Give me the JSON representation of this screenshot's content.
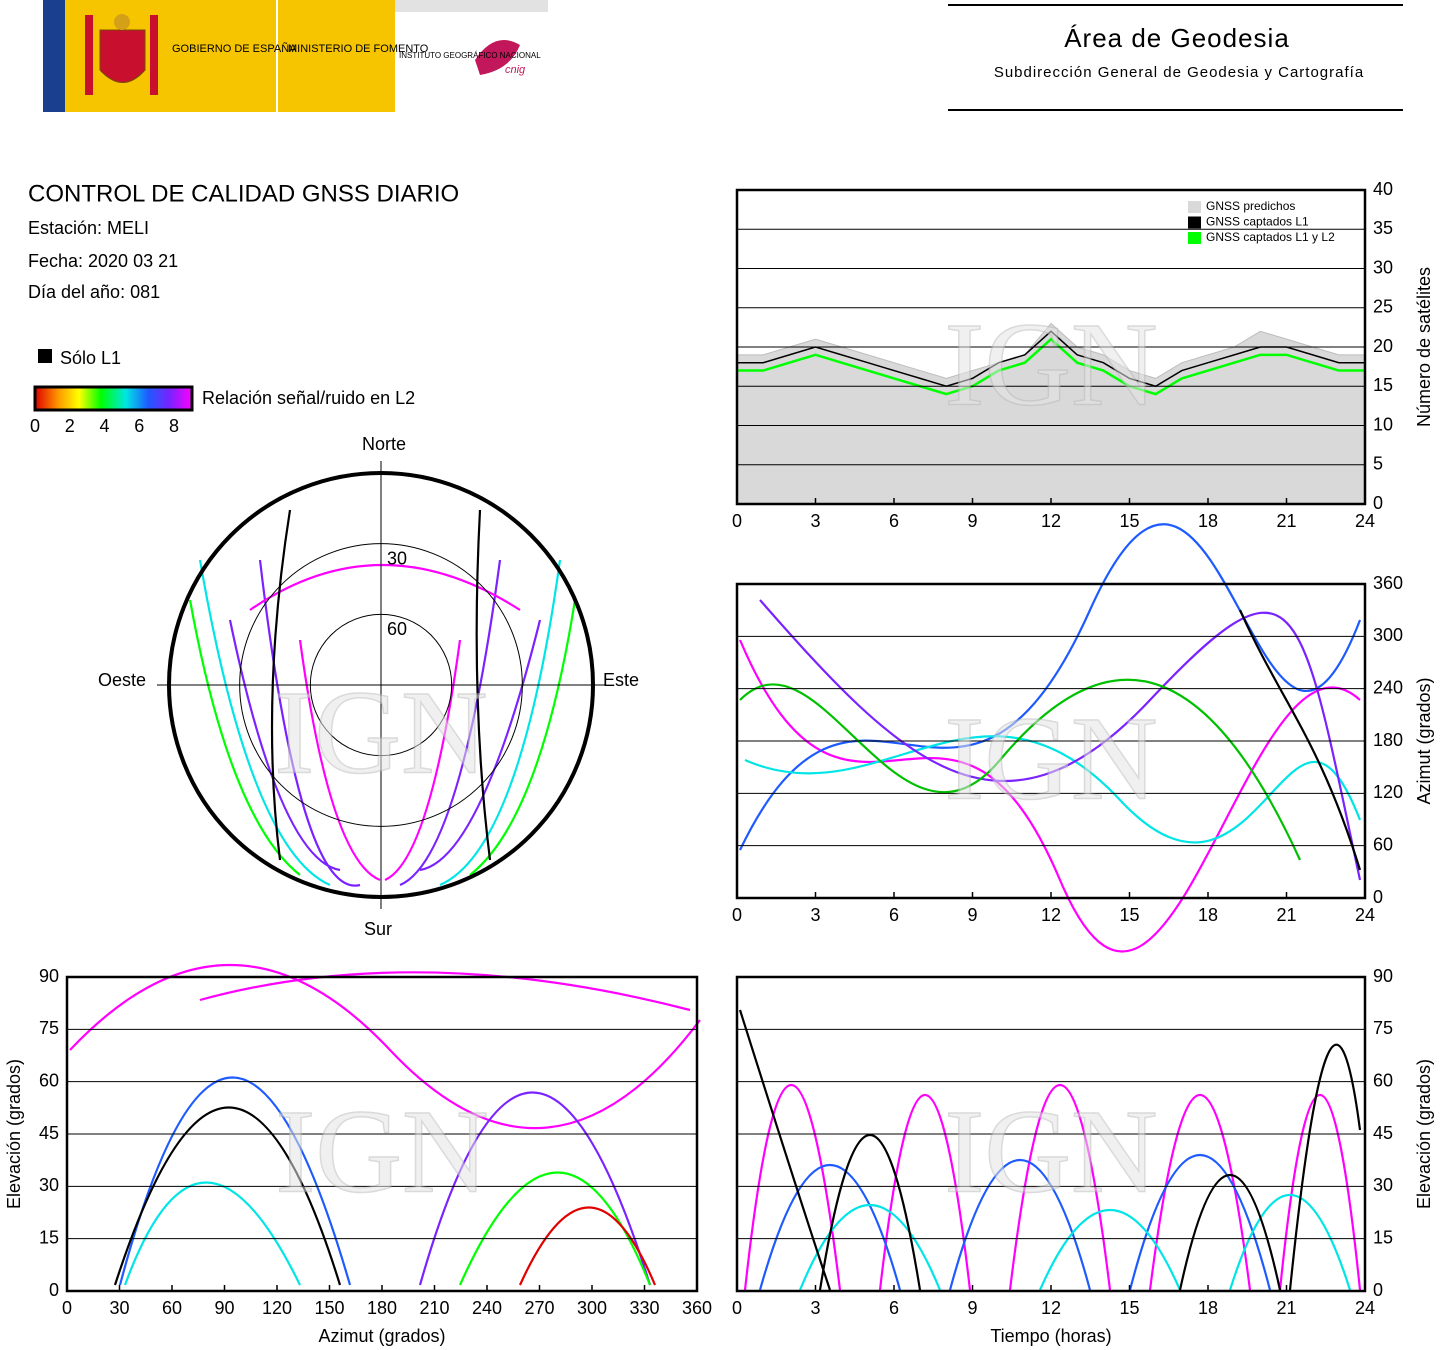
{
  "header": {
    "gov": "GOBIERNO DE ESPAÑA",
    "ministry": "MINISTERIO DE FOMENTO",
    "institute": "INSTITUTO GEOGRÁFICO NACIONAL",
    "cnig": "cnig",
    "area": "Área de Geodesia",
    "subdirection": "Subdirección General de Geodesia y Cartografía"
  },
  "info": {
    "title": "CONTROL DE CALIDAD GNSS DIARIO",
    "station": "Estación: MELI",
    "date": "Fecha: 2020 03 21",
    "doy": "Día del año: 081",
    "l1_only": "Sólo L1",
    "colorbar": {
      "label": "Relación señal/ruido en L2",
      "ticks": [
        0,
        2,
        4,
        6,
        8
      ]
    }
  },
  "watermark": "IGN",
  "chart_data": [
    {
      "type": "line",
      "ylabel": "Número de satélites",
      "x": [
        0,
        1,
        2,
        3,
        4,
        5,
        6,
        7,
        8,
        9,
        10,
        11,
        12,
        13,
        14,
        15,
        16,
        17,
        18,
        19,
        20,
        21,
        22,
        23,
        24
      ],
      "series": [
        {
          "name": "GNSS predichos",
          "color": "#d9d9d9",
          "style": "area",
          "values": [
            19,
            19,
            20,
            21,
            20,
            19,
            18,
            17,
            16,
            17,
            18,
            19,
            23,
            20,
            19,
            17,
            16,
            18,
            19,
            20,
            22,
            21,
            20,
            19,
            19
          ]
        },
        {
          "name": "GNSS captados L1",
          "color": "#000000",
          "values": [
            18,
            18,
            19,
            20,
            19,
            18,
            17,
            16,
            15,
            16,
            18,
            19,
            22,
            19,
            18,
            16,
            15,
            17,
            18,
            19,
            20,
            20,
            19,
            18,
            18
          ]
        },
        {
          "name": "GNSS captados L1 y L2",
          "color": "#00ff00",
          "values": [
            17,
            17,
            18,
            19,
            18,
            17,
            16,
            15,
            14,
            15,
            17,
            18,
            21,
            18,
            17,
            15,
            14,
            16,
            17,
            18,
            19,
            19,
            18,
            17,
            17
          ]
        }
      ],
      "xlim": [
        0,
        24
      ],
      "xticks": [
        0,
        3,
        6,
        9,
        12,
        15,
        18,
        21,
        24
      ],
      "ylim": [
        0,
        40
      ],
      "yticks": [
        0,
        5,
        10,
        15,
        20,
        25,
        30,
        35,
        40
      ],
      "yaxis": "right",
      "grid": true,
      "legend": "upper right"
    },
    {
      "type": "tracks",
      "ylabel": "Azimut (grados)",
      "xlim": [
        0,
        24
      ],
      "xticks": [
        0,
        3,
        6,
        9,
        12,
        15,
        18,
        21,
        24
      ],
      "ylim": [
        0,
        360
      ],
      "yticks": [
        0,
        60,
        120,
        180,
        240,
        300,
        360
      ],
      "yaxis": "right",
      "grid": true
    },
    {
      "type": "tracks",
      "xlabel": "Azimut (grados)",
      "ylabel": "Elevación (grados)",
      "xlim": [
        0,
        360
      ],
      "xticks": [
        0,
        30,
        60,
        90,
        120,
        150,
        180,
        210,
        240,
        270,
        300,
        330,
        360
      ],
      "ylim": [
        0,
        90
      ],
      "yticks": [
        0,
        15,
        30,
        45,
        60,
        75,
        90
      ],
      "yaxis": "left",
      "grid": true
    },
    {
      "type": "tracks",
      "xlabel": "Tiempo (horas)",
      "ylabel": "Elevación (grados)",
      "xlim": [
        0,
        24
      ],
      "xticks": [
        0,
        3,
        6,
        9,
        12,
        15,
        18,
        21,
        24
      ],
      "ylim": [
        0,
        90
      ],
      "yticks": [
        0,
        15,
        30,
        45,
        60,
        75,
        90
      ],
      "yaxis": "right",
      "grid": true
    },
    {
      "type": "polar",
      "north": "Norte",
      "south": "Sur",
      "east": "Este",
      "west": "Oeste",
      "rlim": [
        90,
        0
      ],
      "rticks": [
        30,
        60
      ]
    }
  ]
}
